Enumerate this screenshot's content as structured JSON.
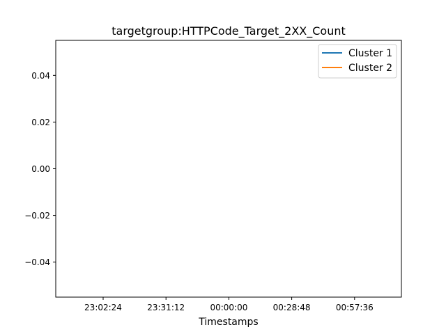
{
  "chart_data": {
    "type": "line",
    "title": "targetgroup:HTTPCode_Target_2XX_Count",
    "xlabel": "Timestamps",
    "ylabel": "",
    "x_ticks": [
      "23:02:24",
      "23:31:12",
      "00:00:00",
      "00:28:48",
      "00:57:36"
    ],
    "y_ticks": [
      "0.04",
      "0.02",
      "0.00",
      "−0.02",
      "−0.04"
    ],
    "y_tick_values": [
      0.04,
      0.02,
      0.0,
      -0.02,
      -0.04
    ],
    "ylim": [
      -0.055,
      0.055
    ],
    "grid": false,
    "legend_position": "top-right",
    "series": [
      {
        "name": "Cluster 1",
        "color": "#1f77b4",
        "values": []
      },
      {
        "name": "Cluster 2",
        "color": "#ff7f0e",
        "values": []
      }
    ]
  }
}
